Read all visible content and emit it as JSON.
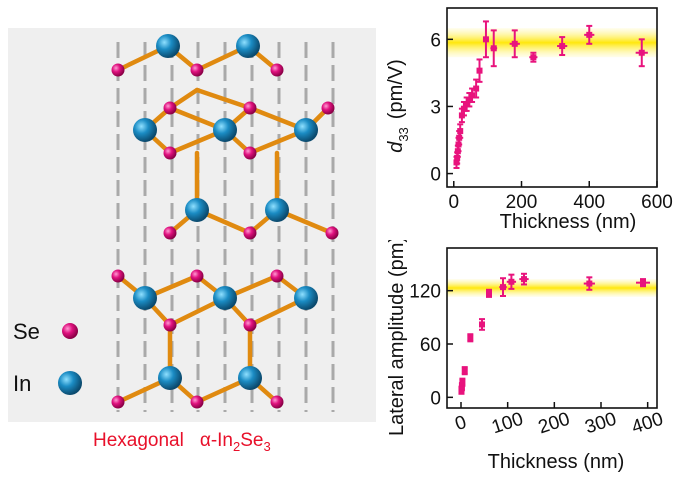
{
  "structure": {
    "legend": [
      {
        "label": "Se",
        "color": "#e0117f"
      },
      {
        "label": "In",
        "color": "#1b8cc4"
      }
    ],
    "caption_prefix": "Hexagonal",
    "caption_alpha": "α-In",
    "caption_sub1": "2",
    "caption_mid": "Se",
    "caption_sub2": "3",
    "bond_color": "#e08a10",
    "background": "#efefef"
  },
  "chart_data": [
    {
      "type": "scatter",
      "ylabel_main": "d",
      "ylabel_sub": "33",
      "ylabel_unit": "(pm/V)",
      "xlabel": "Thickness (nm)",
      "xlim": [
        -20,
        600
      ],
      "ylim": [
        -0.6,
        7.4
      ],
      "xticks": [
        0,
        200,
        400,
        600
      ],
      "yticks": [
        0,
        3,
        6
      ],
      "band": [
        5.2,
        6.5
      ],
      "marker_color": "#e8137d",
      "points": [
        {
          "x": 8,
          "y": 0.5,
          "yerr": 0.25,
          "xerr": 3
        },
        {
          "x": 10,
          "y": 0.7,
          "yerr": 0.25,
          "xerr": 3
        },
        {
          "x": 12,
          "y": 1.0,
          "yerr": 0.25,
          "xerr": 3
        },
        {
          "x": 14,
          "y": 1.3,
          "yerr": 0.3,
          "xerr": 3
        },
        {
          "x": 16,
          "y": 1.6,
          "yerr": 0.3,
          "xerr": 3
        },
        {
          "x": 19,
          "y": 1.9,
          "yerr": 0.3,
          "xerr": 3
        },
        {
          "x": 24,
          "y": 2.6,
          "yerr": 0.3,
          "xerr": 4
        },
        {
          "x": 30,
          "y": 2.9,
          "yerr": 0.3,
          "xerr": 4
        },
        {
          "x": 38,
          "y": 3.1,
          "yerr": 0.3,
          "xerr": 4
        },
        {
          "x": 46,
          "y": 3.3,
          "yerr": 0.3,
          "xerr": 5
        },
        {
          "x": 54,
          "y": 3.5,
          "yerr": 0.3,
          "xerr": 5
        },
        {
          "x": 66,
          "y": 3.8,
          "yerr": 0.4,
          "xerr": 6
        },
        {
          "x": 76,
          "y": 4.6,
          "yerr": 0.5,
          "xerr": 6
        },
        {
          "x": 95,
          "y": 6.0,
          "yerr": 0.8,
          "xerr": 8
        },
        {
          "x": 118,
          "y": 5.6,
          "yerr": 0.8,
          "xerr": 10
        },
        {
          "x": 180,
          "y": 5.8,
          "yerr": 0.6,
          "xerr": 15
        },
        {
          "x": 235,
          "y": 5.2,
          "yerr": 0.2,
          "xerr": 12
        },
        {
          "x": 320,
          "y": 5.7,
          "yerr": 0.4,
          "xerr": 15
        },
        {
          "x": 400,
          "y": 6.2,
          "yerr": 0.4,
          "xerr": 15
        },
        {
          "x": 555,
          "y": 5.4,
          "yerr": 0.6,
          "xerr": 18
        }
      ]
    },
    {
      "type": "scatter",
      "ylabel": "Lateral amplitude (pm)",
      "xlabel": "Thickness (nm)",
      "xlim": [
        -30,
        420
      ],
      "ylim": [
        -12,
        168
      ],
      "xticks": [
        0,
        100,
        200,
        300,
        400
      ],
      "yticks": [
        0,
        60,
        120
      ],
      "band": [
        113,
        133
      ],
      "marker_color": "#e8137d",
      "points": [
        {
          "x": 1,
          "y": 8,
          "yerr": 4,
          "xerr": 2
        },
        {
          "x": 2,
          "y": 12,
          "yerr": 4,
          "xerr": 2
        },
        {
          "x": 3,
          "y": 17,
          "yerr": 4,
          "xerr": 2
        },
        {
          "x": 8,
          "y": 30,
          "yerr": 4,
          "xerr": 3
        },
        {
          "x": 20,
          "y": 67,
          "yerr": 4,
          "xerr": 5
        },
        {
          "x": 45,
          "y": 82,
          "yerr": 6,
          "xerr": 6
        },
        {
          "x": 60,
          "y": 117,
          "yerr": 4,
          "xerr": 6
        },
        {
          "x": 90,
          "y": 124,
          "yerr": 10,
          "xerr": 8
        },
        {
          "x": 108,
          "y": 130,
          "yerr": 8,
          "xerr": 10
        },
        {
          "x": 135,
          "y": 133,
          "yerr": 6,
          "xerr": 10
        },
        {
          "x": 275,
          "y": 128,
          "yerr": 7,
          "xerr": 12
        },
        {
          "x": 390,
          "y": 129,
          "yerr": 4,
          "xerr": 15
        }
      ]
    }
  ]
}
